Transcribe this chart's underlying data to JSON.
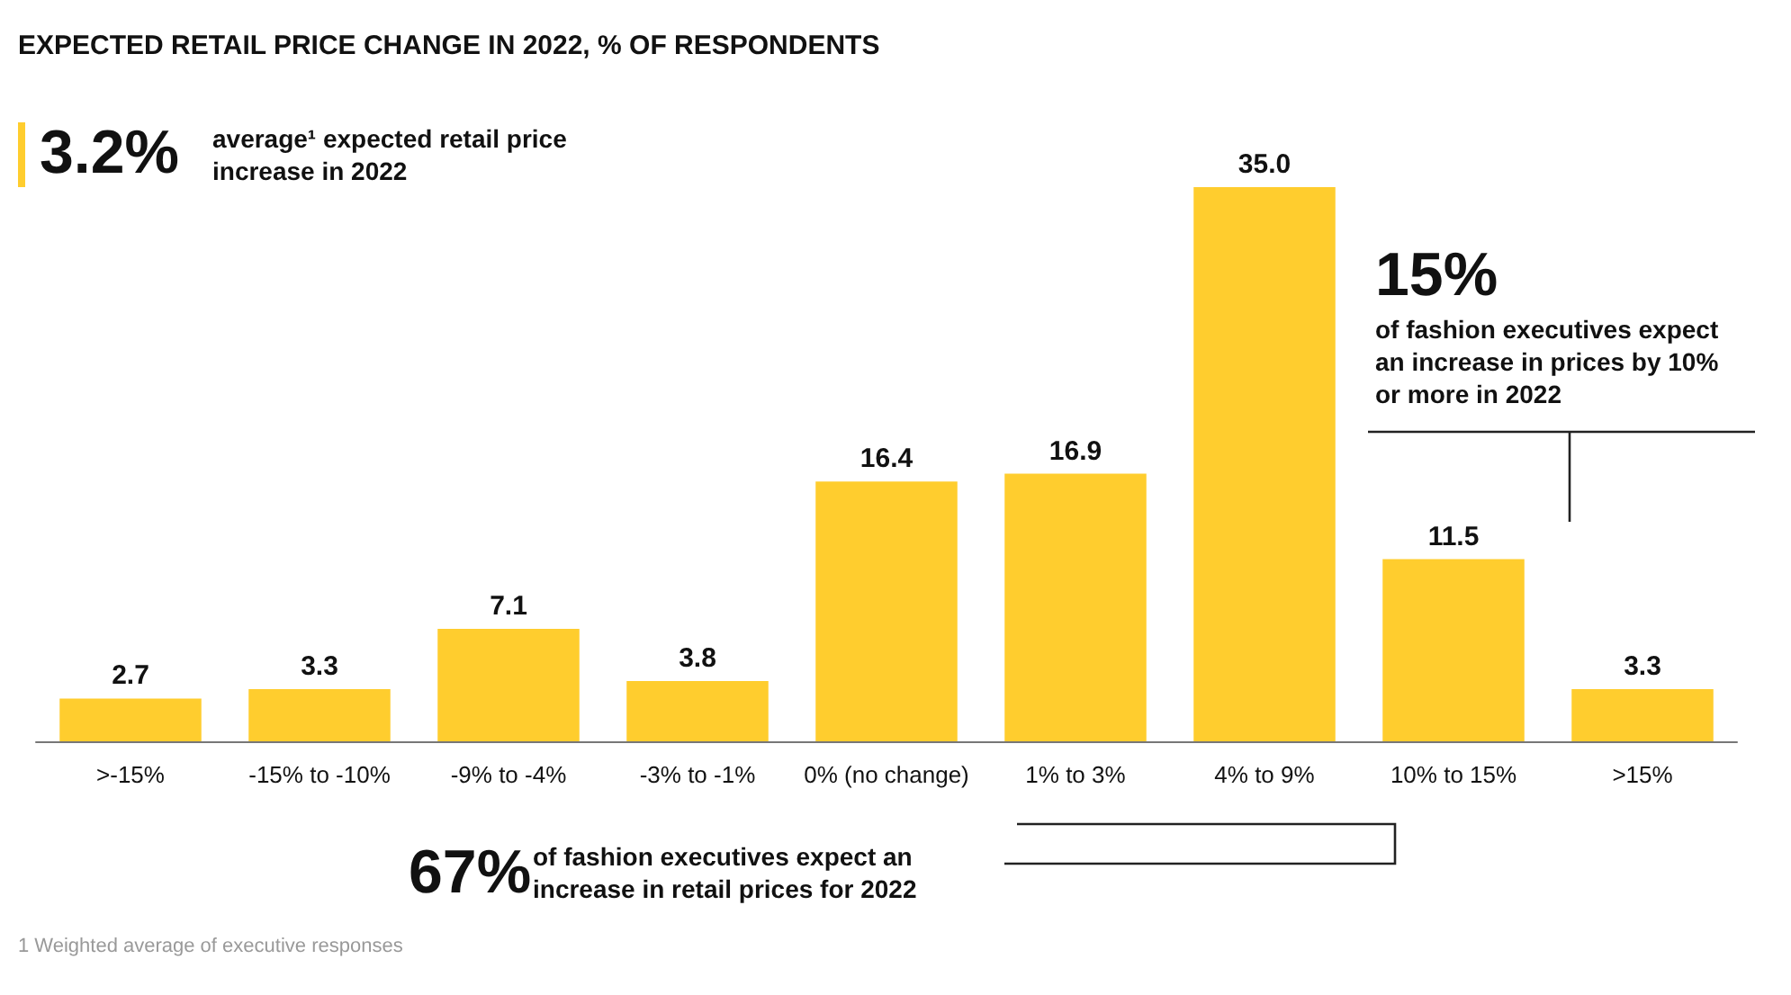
{
  "chart_data": {
    "type": "bar",
    "title": "EXPECTED RETAIL PRICE CHANGE IN 2022, % OF RESPONDENTS",
    "categories": [
      ">-15%",
      "-15% to -10%",
      "-9% to -4%",
      "-3% to -1%",
      "0% (no change)",
      "1% to 3%",
      "4% to 9%",
      "10% to 15%",
      ">15%"
    ],
    "values": [
      2.7,
      3.3,
      7.1,
      3.8,
      16.4,
      16.9,
      35.0,
      11.5,
      3.3
    ],
    "value_labels": [
      "2.7",
      "3.3",
      "7.1",
      "3.8",
      "16.4",
      "16.9",
      "35.0",
      "11.5",
      "3.3"
    ],
    "color": "#ffcd2e",
    "annotations": [
      "3.2%",
      "average¹ expected retail price increase in 2022",
      "15%",
      "of fashion executives expect an increase in prices by 10% or more in 2022",
      "67%",
      "of fashion executives expect an increase in retail prices for 2022",
      "1 Weighted average of executive responses"
    ]
  }
}
